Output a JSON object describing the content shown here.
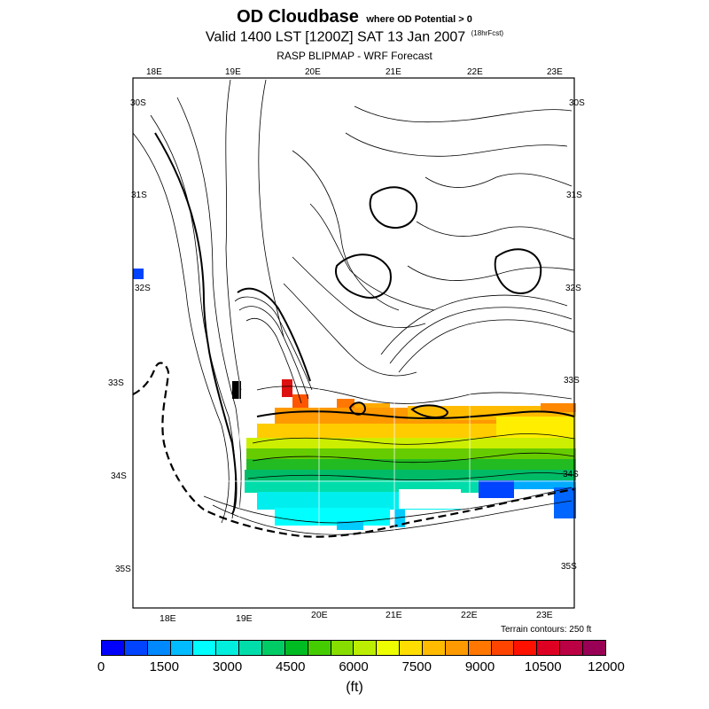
{
  "title": {
    "main": "OD Cloudbase",
    "note": "where OD Potential > 0",
    "valid_line": "Valid 1400 LST [1200Z] SAT 13 Jan 2007",
    "forecast_tag": "(18hrFcst)",
    "subtitle": "RASP BLIPMAP - WRF Forecast"
  },
  "map": {
    "lon_labels_top": [
      "18E",
      "19E",
      "20E",
      "21E",
      "22E",
      "23E"
    ],
    "lon_labels_bottom": [
      "18E",
      "19E",
      "20E",
      "21E",
      "22E",
      "23E"
    ],
    "lat_labels_left": [
      "30S",
      "31S",
      "32S",
      "33S",
      "34S",
      "35S"
    ],
    "lat_labels_right": [
      "30S",
      "31S",
      "32S",
      "33S",
      "34S",
      "35S"
    ],
    "terrain_note": "Terrain contours: 250 ft"
  },
  "colorbar": {
    "colors": [
      "#0000ff",
      "#0044ff",
      "#0088ff",
      "#00bbff",
      "#00ffff",
      "#00eedd",
      "#00ddaa",
      "#00cc66",
      "#00bb22",
      "#44cc00",
      "#88dd00",
      "#bbee00",
      "#eeff00",
      "#ffdd00",
      "#ffbb00",
      "#ff9900",
      "#ff7700",
      "#ff4400",
      "#ff1100",
      "#dd0022",
      "#bb0044",
      "#990055"
    ],
    "tick_labels": [
      "0",
      "1500",
      "3000",
      "4500",
      "6000",
      "7500",
      "9000",
      "10500",
      "12000"
    ],
    "units": "(ft)"
  }
}
